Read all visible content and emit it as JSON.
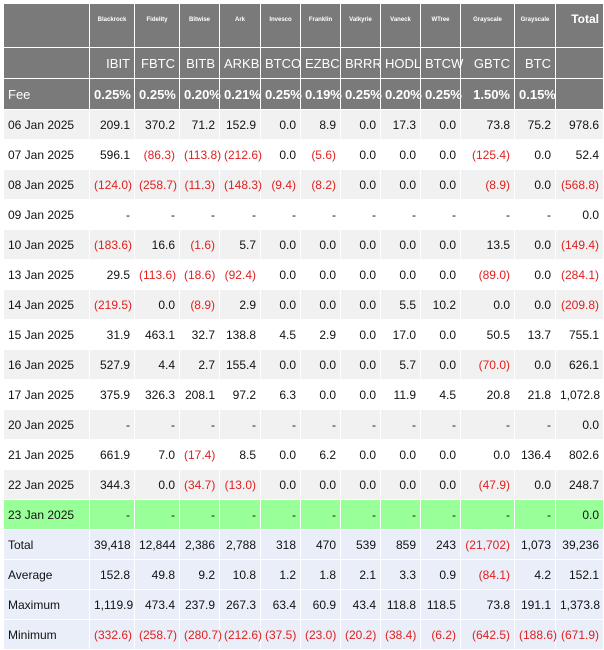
{
  "columns": [
    {
      "issuer": "Blackrock",
      "ticker": "IBIT",
      "fee": "0.25%"
    },
    {
      "issuer": "Fidelity",
      "ticker": "FBTC",
      "fee": "0.25%"
    },
    {
      "issuer": "Bitwise",
      "ticker": "BITB",
      "fee": "0.20%"
    },
    {
      "issuer": "Ark",
      "ticker": "ARKB",
      "fee": "0.21%"
    },
    {
      "issuer": "Invesco",
      "ticker": "BTCO",
      "fee": "0.25%"
    },
    {
      "issuer": "Franklin",
      "ticker": "EZBC",
      "fee": "0.19%"
    },
    {
      "issuer": "Valkyrie",
      "ticker": "BRRR",
      "fee": "0.25%"
    },
    {
      "issuer": "Vaneck",
      "ticker": "HODL",
      "fee": "0.20%"
    },
    {
      "issuer": "WTree",
      "ticker": "BTCW",
      "fee": "0.25%"
    },
    {
      "issuer": "Grayscale",
      "ticker": "GBTC",
      "fee": "1.50%"
    },
    {
      "issuer": "Grayscale",
      "ticker": "BTC",
      "fee": "0.15%"
    }
  ],
  "total_label": "Total",
  "fee_label": "Fee",
  "rows": [
    {
      "date": "06 Jan 2025",
      "values": [
        "209.1",
        "370.2",
        "71.2",
        "152.9",
        "0.0",
        "8.9",
        "0.0",
        "17.3",
        "0.0",
        "73.8",
        "75.2"
      ],
      "total": "978.6"
    },
    {
      "date": "07 Jan 2025",
      "values": [
        "596.1",
        "(86.3)",
        "(113.8)",
        "(212.6)",
        "0.0",
        "(5.6)",
        "0.0",
        "0.0",
        "0.0",
        "(125.4)",
        "0.0"
      ],
      "total": "52.4"
    },
    {
      "date": "08 Jan 2025",
      "values": [
        "(124.0)",
        "(258.7)",
        "(11.3)",
        "(148.3)",
        "(9.4)",
        "(8.2)",
        "0.0",
        "0.0",
        "0.0",
        "(8.9)",
        "0.0"
      ],
      "total": "(568.8)"
    },
    {
      "date": "09 Jan 2025",
      "values": [
        "-",
        "-",
        "-",
        "-",
        "-",
        "-",
        "-",
        "-",
        "-",
        "-",
        "-"
      ],
      "total": "0.0"
    },
    {
      "date": "10 Jan 2025",
      "values": [
        "(183.6)",
        "16.6",
        "(1.6)",
        "5.7",
        "0.0",
        "0.0",
        "0.0",
        "0.0",
        "0.0",
        "13.5",
        "0.0"
      ],
      "total": "(149.4)"
    },
    {
      "date": "13 Jan 2025",
      "values": [
        "29.5",
        "(113.6)",
        "(18.6)",
        "(92.4)",
        "0.0",
        "0.0",
        "0.0",
        "0.0",
        "0.0",
        "(89.0)",
        "0.0"
      ],
      "total": "(284.1)"
    },
    {
      "date": "14 Jan 2025",
      "values": [
        "(219.5)",
        "0.0",
        "(8.9)",
        "2.9",
        "0.0",
        "0.0",
        "0.0",
        "5.5",
        "10.2",
        "0.0",
        "0.0"
      ],
      "total": "(209.8)"
    },
    {
      "date": "15 Jan 2025",
      "values": [
        "31.9",
        "463.1",
        "32.7",
        "138.8",
        "4.5",
        "2.9",
        "0.0",
        "17.0",
        "0.0",
        "50.5",
        "13.7"
      ],
      "total": "755.1"
    },
    {
      "date": "16 Jan 2025",
      "values": [
        "527.9",
        "4.4",
        "2.7",
        "155.4",
        "0.0",
        "0.0",
        "0.0",
        "5.7",
        "0.0",
        "(70.0)",
        "0.0"
      ],
      "total": "626.1"
    },
    {
      "date": "17 Jan 2025",
      "values": [
        "375.9",
        "326.3",
        "208.1",
        "97.2",
        "6.3",
        "0.0",
        "0.0",
        "11.9",
        "4.5",
        "20.8",
        "21.8"
      ],
      "total": "1,072.8"
    },
    {
      "date": "20 Jan 2025",
      "values": [
        "-",
        "-",
        "-",
        "-",
        "-",
        "-",
        "-",
        "-",
        "-",
        "-",
        "-"
      ],
      "total": "0.0"
    },
    {
      "date": "21 Jan 2025",
      "values": [
        "661.9",
        "7.0",
        "(17.4)",
        "8.5",
        "0.0",
        "6.2",
        "0.0",
        "0.0",
        "0.0",
        "0.0",
        "136.4"
      ],
      "total": "802.6"
    },
    {
      "date": "22 Jan 2025",
      "values": [
        "344.3",
        "0.0",
        "(34.7)",
        "(13.0)",
        "0.0",
        "0.0",
        "0.0",
        "0.0",
        "0.0",
        "(47.9)",
        "0.0"
      ],
      "total": "248.7"
    },
    {
      "date": "23 Jan 2025",
      "values": [
        "-",
        "-",
        "-",
        "-",
        "-",
        "-",
        "-",
        "-",
        "-",
        "-",
        "-"
      ],
      "total": "0.0",
      "highlight": true
    }
  ],
  "summary": [
    {
      "label": "Total",
      "values": [
        "39,418",
        "12,844",
        "2,386",
        "2,788",
        "318",
        "470",
        "539",
        "859",
        "243",
        "(21,702)",
        "1,073"
      ],
      "total": "39,236"
    },
    {
      "label": "Average",
      "values": [
        "152.8",
        "49.8",
        "9.2",
        "10.8",
        "1.2",
        "1.8",
        "2.1",
        "3.3",
        "0.9",
        "(84.1)",
        "4.2"
      ],
      "total": "152.1"
    },
    {
      "label": "Maximum",
      "values": [
        "1,119.9",
        "473.4",
        "237.9",
        "267.3",
        "63.4",
        "60.9",
        "43.4",
        "118.8",
        "118.5",
        "73.8",
        "191.1"
      ],
      "total": "1,373.8"
    },
    {
      "label": "Minimum",
      "values": [
        "(332.6)",
        "(258.7)",
        "(280.7)",
        "(212.6)",
        "(37.5)",
        "(23.0)",
        "(20.2)",
        "(38.4)",
        "(6.2)",
        "(642.5)",
        "(188.6)"
      ],
      "total": "(671.9)"
    }
  ],
  "colors": {
    "header_bg": "#7a7a7a",
    "negative": "#e02020",
    "highlight": "#99ff99",
    "summary_bg": "#e9eef8",
    "stripe": "#f1f1f1"
  }
}
